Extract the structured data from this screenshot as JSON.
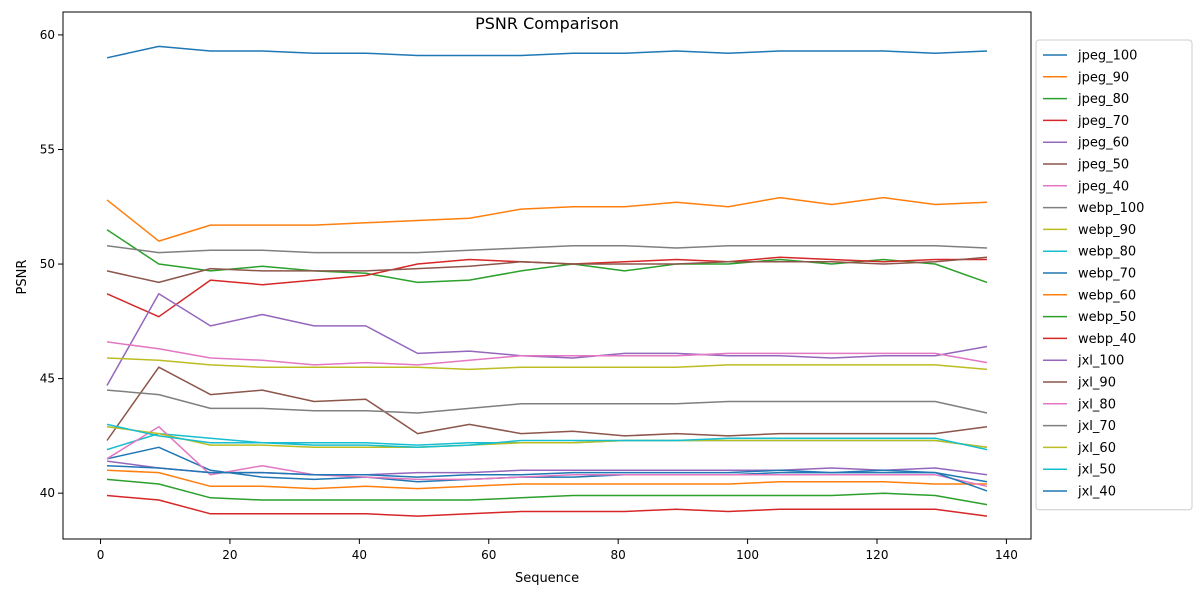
{
  "chart_data": {
    "type": "line",
    "title": "PSNR Comparison",
    "xlabel": "Sequence",
    "ylabel": "PSNR",
    "xlim": [
      -5.8,
      143.8
    ],
    "ylim": [
      38.0,
      61.0
    ],
    "xticks": [
      0,
      20,
      40,
      60,
      80,
      100,
      120,
      140
    ],
    "yticks": [
      40,
      45,
      50,
      55,
      60
    ],
    "grid": false,
    "legend_position": "outside-right-top",
    "x": [
      1,
      9,
      17,
      25,
      33,
      41,
      49,
      57,
      65,
      73,
      81,
      89,
      97,
      105,
      113,
      121,
      129,
      137
    ],
    "series": [
      {
        "name": "jpeg_100",
        "color": "#1f77b4",
        "values": [
          59.0,
          59.5,
          59.3,
          59.3,
          59.2,
          59.2,
          59.1,
          59.1,
          59.1,
          59.2,
          59.2,
          59.3,
          59.2,
          59.3,
          59.3,
          59.3,
          59.2,
          59.3
        ]
      },
      {
        "name": "jpeg_90",
        "color": "#ff7f0e",
        "values": [
          52.8,
          51.0,
          51.7,
          51.7,
          51.7,
          51.8,
          51.9,
          52.0,
          52.4,
          52.5,
          52.5,
          52.7,
          52.5,
          52.9,
          52.6,
          52.9,
          52.6,
          52.7
        ]
      },
      {
        "name": "jpeg_80",
        "color": "#2ca02c",
        "values": [
          51.5,
          50.0,
          49.7,
          49.9,
          49.7,
          49.6,
          49.2,
          49.3,
          49.7,
          50.0,
          49.7,
          50.0,
          50.0,
          50.2,
          50.0,
          50.2,
          50.0,
          49.2
        ]
      },
      {
        "name": "jpeg_70",
        "color": "#d62728",
        "values": [
          48.7,
          47.7,
          49.3,
          49.1,
          49.3,
          49.5,
          50.0,
          50.2,
          50.1,
          50.0,
          50.1,
          50.2,
          50.1,
          50.3,
          50.2,
          50.1,
          50.2,
          50.2
        ]
      },
      {
        "name": "jpeg_60",
        "color": "#9467bd",
        "values": [
          44.7,
          48.7,
          47.3,
          47.8,
          47.3,
          47.3,
          46.1,
          46.2,
          46.0,
          45.9,
          46.1,
          46.1,
          46.0,
          46.0,
          45.9,
          46.0,
          46.0,
          46.4
        ]
      },
      {
        "name": "jpeg_50",
        "color": "#8c564b",
        "values": [
          49.7,
          49.2,
          49.8,
          49.7,
          49.7,
          49.7,
          49.8,
          49.9,
          50.1,
          50.0,
          50.0,
          50.0,
          50.1,
          50.1,
          50.1,
          50.0,
          50.1,
          50.3
        ]
      },
      {
        "name": "jpeg_40",
        "color": "#e377c2",
        "values": [
          46.6,
          46.3,
          45.9,
          45.8,
          45.6,
          45.7,
          45.6,
          45.8,
          46.0,
          46.0,
          46.0,
          46.0,
          46.1,
          46.1,
          46.1,
          46.1,
          46.1,
          45.7
        ]
      },
      {
        "name": "webp_100",
        "color": "#7f7f7f",
        "values": [
          50.8,
          50.5,
          50.6,
          50.6,
          50.5,
          50.5,
          50.5,
          50.6,
          50.7,
          50.8,
          50.8,
          50.7,
          50.8,
          50.8,
          50.8,
          50.8,
          50.8,
          50.7
        ]
      },
      {
        "name": "webp_90",
        "color": "#bcbd22",
        "values": [
          45.9,
          45.8,
          45.6,
          45.5,
          45.5,
          45.5,
          45.5,
          45.4,
          45.5,
          45.5,
          45.5,
          45.5,
          45.6,
          45.6,
          45.6,
          45.6,
          45.6,
          45.4
        ]
      },
      {
        "name": "webp_80",
        "color": "#17becf",
        "values": [
          41.9,
          42.6,
          42.4,
          42.2,
          42.2,
          42.2,
          42.1,
          42.2,
          42.2,
          42.2,
          42.3,
          42.3,
          42.3,
          42.3,
          42.3,
          42.3,
          42.3,
          42.0
        ]
      },
      {
        "name": "webp_70",
        "color": "#1f77b4",
        "values": [
          41.5,
          42.0,
          41.0,
          40.7,
          40.6,
          40.7,
          40.5,
          40.6,
          40.7,
          40.7,
          40.8,
          40.8,
          40.8,
          40.9,
          40.9,
          40.9,
          40.9,
          40.5
        ]
      },
      {
        "name": "webp_60",
        "color": "#ff7f0e",
        "values": [
          41.0,
          40.9,
          40.3,
          40.3,
          40.2,
          40.3,
          40.2,
          40.3,
          40.4,
          40.4,
          40.4,
          40.4,
          40.4,
          40.5,
          40.5,
          40.5,
          40.4,
          40.4
        ]
      },
      {
        "name": "webp_50",
        "color": "#2ca02c",
        "values": [
          40.6,
          40.4,
          39.8,
          39.7,
          39.7,
          39.7,
          39.7,
          39.7,
          39.8,
          39.9,
          39.9,
          39.9,
          39.9,
          39.9,
          39.9,
          40.0,
          39.9,
          39.5
        ]
      },
      {
        "name": "webp_40",
        "color": "#d62728",
        "values": [
          39.9,
          39.7,
          39.1,
          39.1,
          39.1,
          39.1,
          39.0,
          39.1,
          39.2,
          39.2,
          39.2,
          39.3,
          39.2,
          39.3,
          39.3,
          39.3,
          39.3,
          39.0
        ]
      },
      {
        "name": "jxl_100",
        "color": "#9467bd",
        "values": [
          41.4,
          41.1,
          40.9,
          40.9,
          40.8,
          40.8,
          40.9,
          40.9,
          41.0,
          41.0,
          41.0,
          41.0,
          41.0,
          41.0,
          41.1,
          41.0,
          41.1,
          40.8
        ]
      },
      {
        "name": "jxl_90",
        "color": "#8c564b",
        "values": [
          42.3,
          45.5,
          44.3,
          44.5,
          44.0,
          44.1,
          42.6,
          43.0,
          42.6,
          42.7,
          42.5,
          42.6,
          42.5,
          42.6,
          42.6,
          42.6,
          42.6,
          42.9
        ]
      },
      {
        "name": "jxl_80",
        "color": "#e377c2",
        "values": [
          41.5,
          42.9,
          40.8,
          41.2,
          40.8,
          40.7,
          40.6,
          40.6,
          40.7,
          40.8,
          40.8,
          40.8,
          40.8,
          40.8,
          40.8,
          40.8,
          40.8,
          40.3
        ]
      },
      {
        "name": "jxl_70",
        "color": "#7f7f7f",
        "values": [
          44.5,
          44.3,
          43.7,
          43.7,
          43.6,
          43.6,
          43.5,
          43.7,
          43.9,
          43.9,
          43.9,
          43.9,
          44.0,
          44.0,
          44.0,
          44.0,
          44.0,
          43.5
        ]
      },
      {
        "name": "jxl_60",
        "color": "#bcbd22",
        "values": [
          42.9,
          42.6,
          42.1,
          42.1,
          42.0,
          42.0,
          42.0,
          42.1,
          42.2,
          42.2,
          42.3,
          42.3,
          42.3,
          42.3,
          42.3,
          42.3,
          42.3,
          42.0
        ]
      },
      {
        "name": "jxl_50",
        "color": "#17becf",
        "values": [
          43.0,
          42.5,
          42.2,
          42.2,
          42.1,
          42.1,
          42.0,
          42.1,
          42.3,
          42.3,
          42.3,
          42.3,
          42.4,
          42.4,
          42.4,
          42.4,
          42.4,
          41.9
        ]
      },
      {
        "name": "jxl_40",
        "color": "#1f77b4",
        "values": [
          41.2,
          41.1,
          40.9,
          40.9,
          40.8,
          40.8,
          40.7,
          40.8,
          40.8,
          40.9,
          40.9,
          40.9,
          40.9,
          41.0,
          40.9,
          41.0,
          40.9,
          40.1
        ]
      }
    ]
  }
}
